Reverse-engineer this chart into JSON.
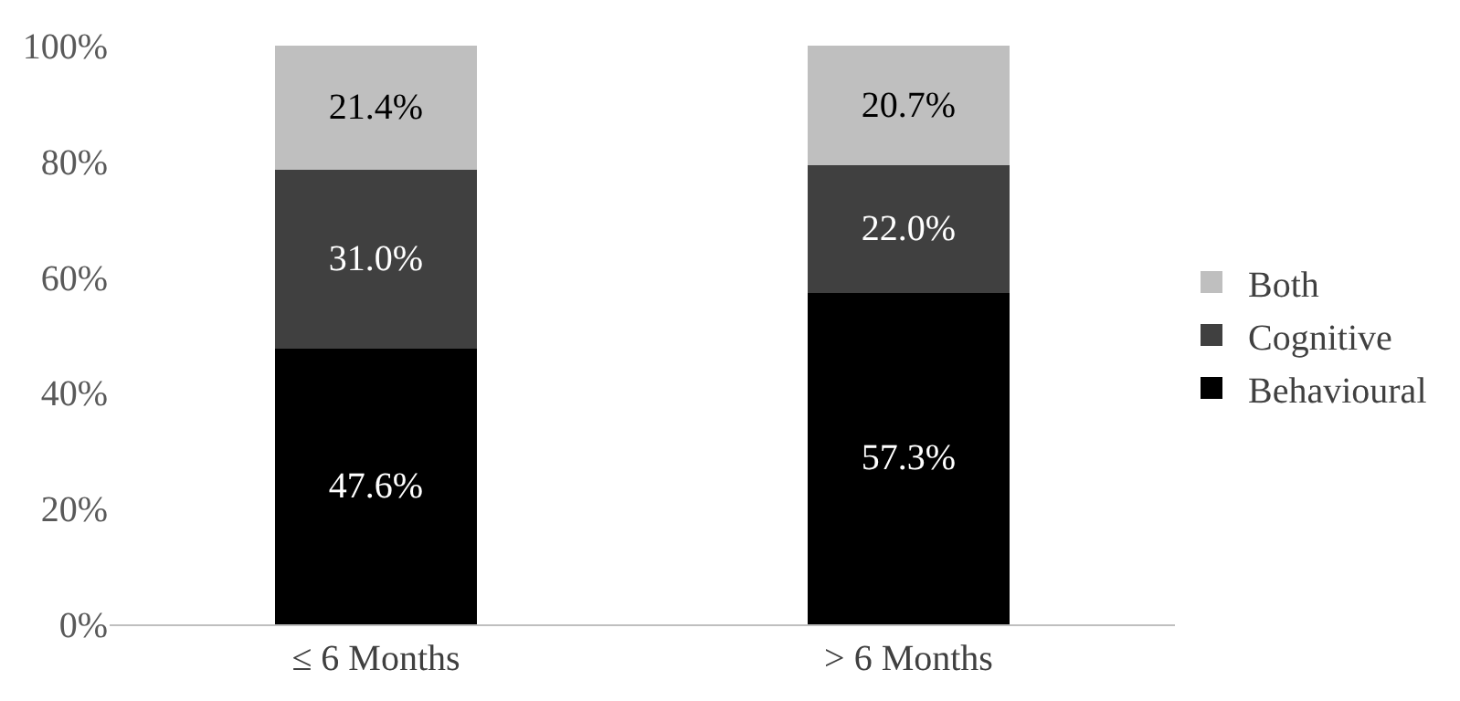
{
  "chart_data": {
    "type": "bar",
    "stacked": true,
    "categories": [
      "≤ 6 Months",
      "> 6 Months"
    ],
    "series": [
      {
        "name": "Behavioural",
        "color": "#000000",
        "values": [
          47.6,
          57.3
        ],
        "value_labels": [
          "47.6%",
          "57.3%"
        ]
      },
      {
        "name": "Cognitive",
        "color": "#404040",
        "values": [
          31.0,
          22.0
        ],
        "value_labels": [
          "31.0%",
          "22.0%"
        ]
      },
      {
        "name": "Both",
        "color": "#bfbfbf",
        "values": [
          21.4,
          20.7
        ],
        "value_labels": [
          "21.4%",
          "20.7%"
        ]
      }
    ],
    "ylim": [
      0,
      100
    ],
    "yticks": [
      {
        "value": 0,
        "label": "0%"
      },
      {
        "value": 20,
        "label": "20%"
      },
      {
        "value": 40,
        "label": "40%"
      },
      {
        "value": 60,
        "label": "60%"
      },
      {
        "value": 80,
        "label": "80%"
      },
      {
        "value": 100,
        "label": "100%"
      }
    ],
    "grid": false,
    "legend": "right"
  }
}
